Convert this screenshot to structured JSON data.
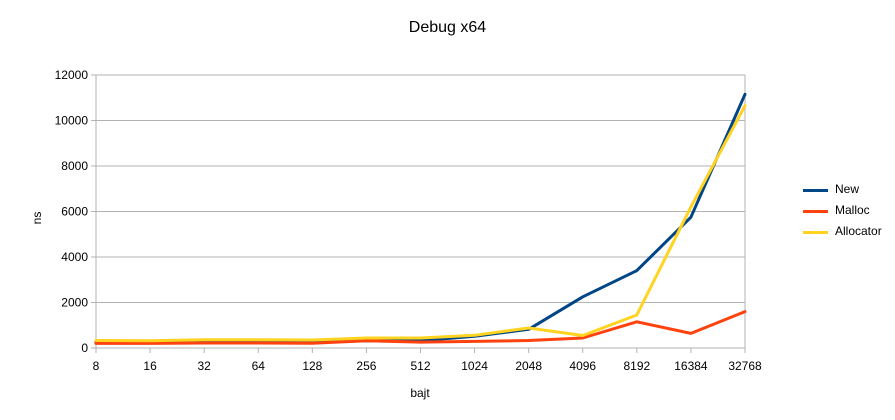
{
  "chart_data": {
    "type": "line",
    "title": "Debug x64",
    "xlabel": "bajt",
    "ylabel": "ns",
    "categories": [
      "8",
      "16",
      "32",
      "64",
      "128",
      "256",
      "512",
      "1024",
      "2048",
      "4096",
      "8192",
      "16384",
      "32768"
    ],
    "ylim": [
      0,
      12000
    ],
    "yticks": [
      "0",
      "2000",
      "4000",
      "6000",
      "8000",
      "10000",
      "12000"
    ],
    "grid": true,
    "legend_position": "right",
    "series": [
      {
        "name": "New",
        "color": "#004586",
        "values": [
          250,
          250,
          270,
          270,
          260,
          320,
          320,
          520,
          820,
          2250,
          3400,
          5750,
          11150
        ]
      },
      {
        "name": "Malloc",
        "color": "#ff420e",
        "values": [
          200,
          200,
          220,
          220,
          210,
          320,
          260,
          290,
          330,
          440,
          1150,
          640,
          1600
        ]
      },
      {
        "name": "Allocator",
        "color": "#ffd320",
        "values": [
          330,
          320,
          360,
          360,
          350,
          440,
          440,
          560,
          880,
          550,
          1450,
          6200,
          10650
        ]
      }
    ]
  }
}
